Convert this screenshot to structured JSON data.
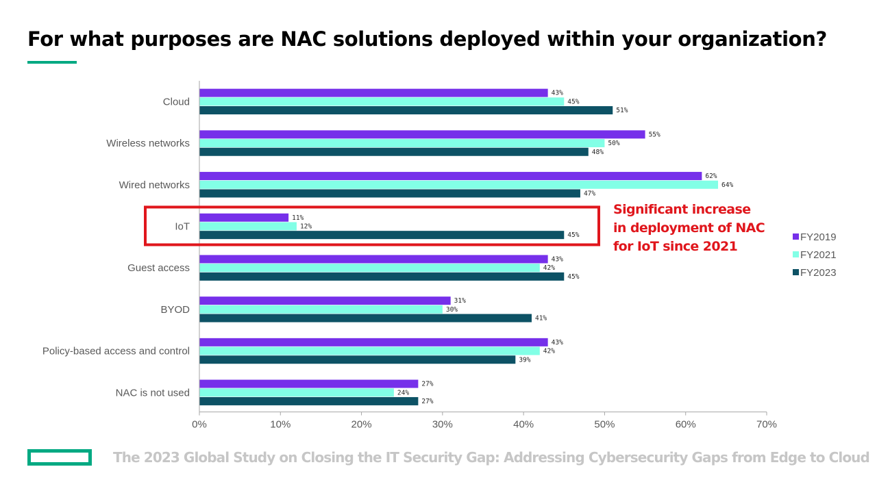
{
  "slide": {
    "title": "For what purposes are NAC solutions deployed within your organization?",
    "footer": "The 2023 Global Study on Closing the IT Security Gap: Addressing Cybersecurity Gaps from Edge to Cloud",
    "accent_color": "#01A982",
    "footer_text_color": "#C6C6C6"
  },
  "chart_data": {
    "type": "bar",
    "orientation": "horizontal",
    "categories": [
      "Cloud",
      "Wireless networks",
      "Wired networks",
      "IoT",
      "Guest access",
      "BYOD",
      "Policy-based access and control",
      "NAC is not used"
    ],
    "series": [
      {
        "name": "FY2019",
        "color": "#7630EA",
        "values": [
          43,
          55,
          62,
          11,
          43,
          31,
          43,
          27
        ],
        "labels": [
          "43%",
          "55%",
          "62%",
          "11%",
          "43%",
          "31%",
          "43%",
          "27%"
        ]
      },
      {
        "name": "FY2021",
        "color": "#82FFE6",
        "values": [
          45,
          50,
          64,
          12,
          42,
          30,
          42,
          24
        ],
        "labels": [
          "45%",
          "50%",
          "64%",
          "12%",
          "42%",
          "30%",
          "42%",
          "24%"
        ]
      },
      {
        "name": "FY2023",
        "color": "#0D5265",
        "values": [
          51,
          48,
          47,
          45,
          45,
          41,
          39,
          27
        ],
        "labels": [
          "51%",
          "48%",
          "47%",
          "45%",
          "45%",
          "41%",
          "39%",
          "27%"
        ]
      }
    ],
    "xlim": [
      0,
      70
    ],
    "xticks": [
      0,
      10,
      20,
      30,
      40,
      50,
      60,
      70
    ],
    "xtick_labels": [
      "0%",
      "10%",
      "20%",
      "30%",
      "40%",
      "50%",
      "60%",
      "70%"
    ],
    "grid": false,
    "legend_position": "right",
    "annotation": {
      "target_category": "IoT",
      "lines": [
        "Significant increase",
        "in deployment of NAC",
        "for IoT since 2021"
      ],
      "color": "#E0161C"
    }
  }
}
